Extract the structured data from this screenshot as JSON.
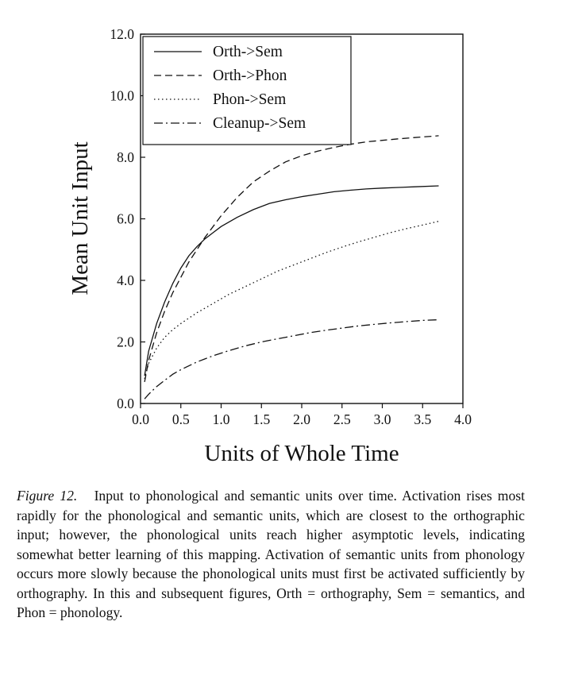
{
  "chart_data": {
    "type": "line",
    "xlabel": "Units of Whole Time",
    "ylabel": "Mean Unit Input",
    "xlim": [
      0.0,
      4.0
    ],
    "ylim": [
      0.0,
      12.0
    ],
    "xticks": [
      "0.0",
      "0.5",
      "1.0",
      "1.5",
      "2.0",
      "2.5",
      "3.0",
      "3.5",
      "4.0"
    ],
    "yticks": [
      "0.0",
      "2.0",
      "4.0",
      "6.0",
      "8.0",
      "10.0",
      "12.0"
    ],
    "grid": false,
    "legend_position": "top-left",
    "series": [
      {
        "name": "Orth->Sem",
        "style": "solid",
        "x": [
          0.05,
          0.1,
          0.2,
          0.3,
          0.4,
          0.5,
          0.6,
          0.7,
          0.8,
          0.9,
          1.0,
          1.2,
          1.4,
          1.6,
          1.8,
          2.0,
          2.2,
          2.4,
          2.6,
          2.8,
          3.0,
          3.2,
          3.4,
          3.7
        ],
        "y": [
          0.9,
          1.7,
          2.6,
          3.3,
          3.9,
          4.4,
          4.8,
          5.1,
          5.35,
          5.55,
          5.75,
          6.05,
          6.3,
          6.5,
          6.62,
          6.72,
          6.8,
          6.88,
          6.93,
          6.97,
          7.0,
          7.02,
          7.04,
          7.07
        ]
      },
      {
        "name": "Orth->Phon",
        "style": "dashed",
        "x": [
          0.05,
          0.1,
          0.2,
          0.3,
          0.4,
          0.5,
          0.6,
          0.7,
          0.8,
          0.9,
          1.0,
          1.2,
          1.4,
          1.6,
          1.8,
          2.0,
          2.2,
          2.4,
          2.6,
          2.8,
          3.0,
          3.2,
          3.4,
          3.7
        ],
        "y": [
          0.7,
          1.4,
          2.3,
          3.0,
          3.6,
          4.1,
          4.6,
          5.0,
          5.4,
          5.75,
          6.1,
          6.7,
          7.2,
          7.55,
          7.85,
          8.05,
          8.2,
          8.32,
          8.42,
          8.5,
          8.55,
          8.6,
          8.64,
          8.7
        ]
      },
      {
        "name": "Phon->Sem",
        "style": "dotted",
        "x": [
          0.05,
          0.1,
          0.2,
          0.3,
          0.4,
          0.5,
          0.7,
          0.9,
          1.1,
          1.3,
          1.5,
          1.7,
          1.9,
          2.1,
          2.3,
          2.5,
          2.7,
          2.9,
          3.1,
          3.3,
          3.5,
          3.7
        ],
        "y": [
          0.8,
          1.3,
          1.8,
          2.15,
          2.4,
          2.6,
          2.95,
          3.25,
          3.55,
          3.8,
          4.05,
          4.3,
          4.5,
          4.7,
          4.9,
          5.08,
          5.25,
          5.4,
          5.55,
          5.68,
          5.8,
          5.92
        ]
      },
      {
        "name": "Cleanup->Sem",
        "style": "dashdot",
        "x": [
          0.05,
          0.1,
          0.2,
          0.3,
          0.4,
          0.5,
          0.7,
          0.9,
          1.1,
          1.3,
          1.5,
          1.7,
          1.9,
          2.1,
          2.3,
          2.5,
          2.7,
          2.9,
          3.1,
          3.3,
          3.5,
          3.7
        ],
        "y": [
          0.15,
          0.3,
          0.55,
          0.75,
          0.95,
          1.1,
          1.35,
          1.55,
          1.72,
          1.87,
          2.0,
          2.1,
          2.2,
          2.3,
          2.38,
          2.45,
          2.52,
          2.57,
          2.62,
          2.66,
          2.7,
          2.72
        ]
      }
    ]
  },
  "caption": {
    "label": "Figure 12.",
    "text": "Input to phonological and semantic units over time. Activation rises most rapidly for the phonological and semantic units, which are closest to the orthographic input; however, the phonological units reach higher asymptotic levels, indicating somewhat better learning of this mapping. Activation of semantic units from phonology occurs more slowly because the phonological units must first be activated sufficiently by orthography. In this and subsequent figures, Orth = orthography, Sem = semantics, and Phon = phonology."
  }
}
